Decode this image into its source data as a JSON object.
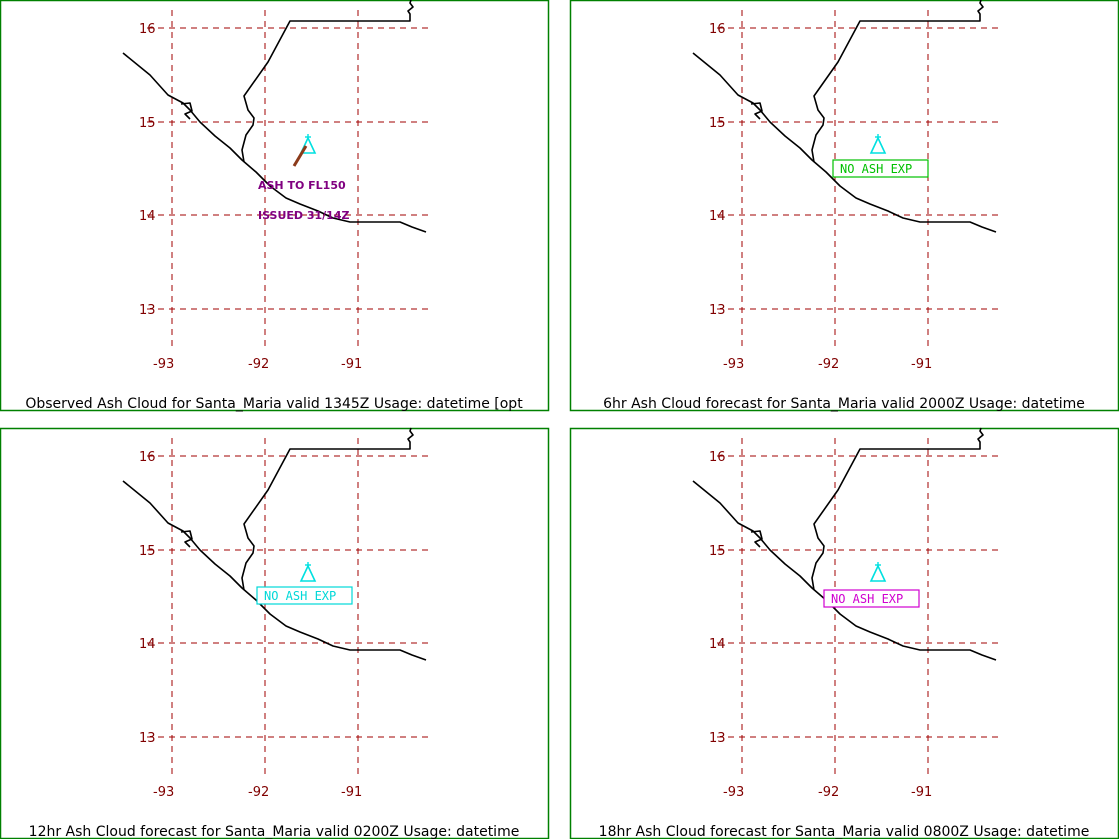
{
  "colors": {
    "frame": "#008000",
    "grid": "#a00000",
    "tick_label": "#800000",
    "coast": "#000000",
    "volcano": "#00e0e0",
    "annotation": "#800080",
    "no_ash_green": "#00c000",
    "no_ash_cyan": "#00d8d8",
    "no_ash_magenta": "#d000d0"
  },
  "axes": {
    "lat_ticks": [
      "16",
      "15",
      "14",
      "13"
    ],
    "lon_ticks": [
      "-93",
      "-92",
      "-91"
    ]
  },
  "volcano_icon": "volcano-triangle-icon",
  "panels": [
    {
      "caption": "Observed Ash Cloud for Santa_Maria valid 1345Z Usage: datetime [opt",
      "annotations": [
        "ASH TO FL150",
        "ISSUED 31/14Z"
      ],
      "no_ash_label": "",
      "box_color": "",
      "plume": true
    },
    {
      "caption": "6hr Ash Cloud forecast for Santa_Maria valid 2000Z Usage: datetime",
      "annotations": [],
      "no_ash_label": "NO ASH EXP",
      "box_color": "#00c000",
      "plume": false
    },
    {
      "caption": "12hr Ash Cloud forecast for Santa_Maria valid 0200Z Usage: datetime",
      "annotations": [],
      "no_ash_label": "NO ASH EXP",
      "box_color": "#00d8d8",
      "plume": false
    },
    {
      "caption": "18hr Ash Cloud forecast for Santa_Maria valid 0800Z Usage: datetime",
      "annotations": [],
      "no_ash_label": "NO ASH EXP",
      "box_color": "#d000d0",
      "plume": false
    }
  ]
}
